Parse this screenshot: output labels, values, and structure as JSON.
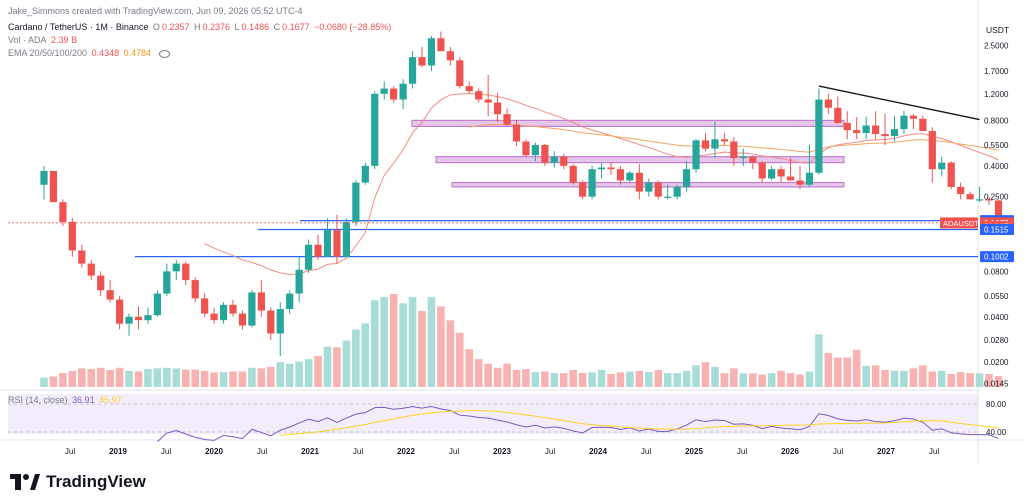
{
  "header": {
    "credit": "Jake_Simmons created with TradingView.com, Jun 09, 2026 05:52 UTC-4",
    "symbol": "Cardano / TetherUS · 1M · Binance",
    "ohlc": {
      "o_label": "O",
      "o": "0.2357",
      "h_label": "H",
      "h": "0.2376",
      "l_label": "L",
      "l": "0.1486",
      "c_label": "C",
      "c": "0.1677",
      "change": "−0.0680 (−28.85%)"
    },
    "volume": {
      "label": "Vol · ADA",
      "value": "2.39 B"
    },
    "ema": {
      "label": "EMA 20/50/100/200",
      "v1": "0.4348",
      "v2": "0.4784"
    },
    "rsi": {
      "label": "RSI (14, close)",
      "v1": "36.91",
      "v2": "45.97"
    }
  },
  "chart_data": {
    "type": "candlestick",
    "symbol": "ADAUSDT",
    "yscale": "log",
    "ylim": [
      0.0135,
      3.7
    ],
    "currency_label": "USDT",
    "y_ticks": [
      "2.5000",
      "1.7000",
      "1.2000",
      "0.8000",
      "0.5500",
      "0.4000",
      "0.2500",
      "0.0800",
      "0.0550",
      "0.0400",
      "0.0280",
      "0.0200",
      "0.0145"
    ],
    "y_tick_values": [
      2.5,
      1.7,
      1.2,
      0.8,
      0.55,
      0.4,
      0.25,
      0.08,
      0.055,
      0.04,
      0.028,
      0.02,
      0.0145
    ],
    "x_ticks": [
      "Jul",
      "2019",
      "Jul",
      "2020",
      "Jul",
      "2021",
      "Jul",
      "2022",
      "Jul",
      "2023",
      "Jul",
      "2024",
      "Jul",
      "2025",
      "Jul",
      "2026",
      "Jul",
      "2027",
      "Jul"
    ],
    "candles": [
      [
        0.3,
        0.4,
        0.24,
        0.37
      ],
      [
        0.37,
        0.36,
        0.23,
        0.23
      ],
      [
        0.23,
        0.24,
        0.16,
        0.17
      ],
      [
        0.17,
        0.18,
        0.1,
        0.11
      ],
      [
        0.11,
        0.12,
        0.085,
        0.09
      ],
      [
        0.09,
        0.095,
        0.07,
        0.075
      ],
      [
        0.075,
        0.08,
        0.055,
        0.06
      ],
      [
        0.06,
        0.07,
        0.05,
        0.052
      ],
      [
        0.052,
        0.055,
        0.033,
        0.036
      ],
      [
        0.036,
        0.042,
        0.03,
        0.04
      ],
      [
        0.04,
        0.047,
        0.033,
        0.038
      ],
      [
        0.038,
        0.046,
        0.036,
        0.041
      ],
      [
        0.041,
        0.06,
        0.04,
        0.057
      ],
      [
        0.057,
        0.09,
        0.055,
        0.08
      ],
      [
        0.08,
        0.095,
        0.07,
        0.09
      ],
      [
        0.09,
        0.093,
        0.065,
        0.07
      ],
      [
        0.07,
        0.073,
        0.05,
        0.053
      ],
      [
        0.053,
        0.057,
        0.04,
        0.042
      ],
      [
        0.042,
        0.046,
        0.036,
        0.038
      ],
      [
        0.038,
        0.05,
        0.036,
        0.048
      ],
      [
        0.048,
        0.052,
        0.04,
        0.042
      ],
      [
        0.042,
        0.044,
        0.033,
        0.035
      ],
      [
        0.035,
        0.06,
        0.034,
        0.058
      ],
      [
        0.058,
        0.07,
        0.04,
        0.044
      ],
      [
        0.044,
        0.046,
        0.028,
        0.031
      ],
      [
        0.031,
        0.05,
        0.022,
        0.045
      ],
      [
        0.045,
        0.06,
        0.042,
        0.057
      ],
      [
        0.057,
        0.1,
        0.05,
        0.082
      ],
      [
        0.082,
        0.13,
        0.078,
        0.12
      ],
      [
        0.12,
        0.14,
        0.095,
        0.1
      ],
      [
        0.1,
        0.18,
        0.1,
        0.15
      ],
      [
        0.15,
        0.19,
        0.09,
        0.1
      ],
      [
        0.1,
        0.18,
        0.1,
        0.17
      ],
      [
        0.17,
        0.32,
        0.16,
        0.31
      ],
      [
        0.31,
        0.42,
        0.3,
        0.4
      ],
      [
        0.4,
        1.25,
        0.38,
        1.2
      ],
      [
        1.2,
        1.45,
        1.1,
        1.3
      ],
      [
        1.3,
        1.35,
        1.05,
        1.1
      ],
      [
        1.1,
        1.5,
        0.95,
        1.4
      ],
      [
        1.4,
        2.3,
        1.3,
        2.1
      ],
      [
        2.1,
        2.45,
        1.8,
        1.85
      ],
      [
        1.85,
        2.9,
        1.7,
        2.8
      ],
      [
        2.8,
        3.1,
        2.3,
        2.3
      ],
      [
        2.3,
        2.45,
        1.85,
        2.0
      ],
      [
        2.0,
        2.1,
        1.3,
        1.35
      ],
      [
        1.35,
        1.45,
        1.2,
        1.25
      ],
      [
        1.25,
        1.3,
        1.05,
        1.1
      ],
      [
        1.1,
        1.6,
        0.85,
        1.05
      ],
      [
        1.05,
        1.22,
        0.78,
        0.88
      ],
      [
        0.88,
        0.96,
        0.73,
        0.75
      ],
      [
        0.75,
        0.8,
        0.54,
        0.58
      ],
      [
        0.58,
        0.6,
        0.46,
        0.47
      ],
      [
        0.47,
        0.57,
        0.43,
        0.55
      ],
      [
        0.55,
        0.56,
        0.4,
        0.42
      ],
      [
        0.42,
        0.5,
        0.39,
        0.46
      ],
      [
        0.46,
        0.48,
        0.38,
        0.4
      ],
      [
        0.4,
        0.41,
        0.3,
        0.31
      ],
      [
        0.31,
        0.32,
        0.24,
        0.25
      ],
      [
        0.25,
        0.4,
        0.24,
        0.38
      ],
      [
        0.38,
        0.42,
        0.33,
        0.39
      ],
      [
        0.39,
        0.42,
        0.35,
        0.38
      ],
      [
        0.38,
        0.4,
        0.3,
        0.32
      ],
      [
        0.32,
        0.37,
        0.31,
        0.36
      ],
      [
        0.36,
        0.41,
        0.24,
        0.27
      ],
      [
        0.27,
        0.33,
        0.25,
        0.31
      ],
      [
        0.31,
        0.32,
        0.24,
        0.25
      ],
      [
        0.25,
        0.3,
        0.24,
        0.25
      ],
      [
        0.25,
        0.3,
        0.24,
        0.29
      ],
      [
        0.29,
        0.43,
        0.27,
        0.38
      ],
      [
        0.38,
        0.6,
        0.36,
        0.59
      ],
      [
        0.59,
        0.66,
        0.5,
        0.52
      ],
      [
        0.52,
        0.78,
        0.45,
        0.6
      ],
      [
        0.6,
        0.66,
        0.55,
        0.58
      ],
      [
        0.58,
        0.62,
        0.4,
        0.45
      ],
      [
        0.45,
        0.52,
        0.4,
        0.46
      ],
      [
        0.46,
        0.47,
        0.38,
        0.42
      ],
      [
        0.42,
        0.43,
        0.31,
        0.33
      ],
      [
        0.33,
        0.4,
        0.32,
        0.38
      ],
      [
        0.38,
        0.4,
        0.31,
        0.34
      ],
      [
        0.34,
        0.45,
        0.32,
        0.32
      ],
      [
        0.32,
        0.4,
        0.28,
        0.3
      ],
      [
        0.3,
        0.55,
        0.29,
        0.36
      ],
      [
        0.36,
        1.3,
        0.35,
        1.1
      ],
      [
        1.1,
        1.2,
        0.88,
        0.97
      ],
      [
        0.97,
        1.15,
        0.76,
        0.77
      ],
      [
        0.77,
        0.92,
        0.6,
        0.69
      ],
      [
        0.69,
        0.84,
        0.6,
        0.66
      ],
      [
        0.66,
        0.85,
        0.6,
        0.74
      ],
      [
        0.74,
        0.92,
        0.6,
        0.65
      ],
      [
        0.65,
        0.89,
        0.55,
        0.63
      ],
      [
        0.63,
        0.86,
        0.58,
        0.7
      ],
      [
        0.7,
        0.93,
        0.65,
        0.86
      ],
      [
        0.86,
        0.88,
        0.7,
        0.82
      ],
      [
        0.82,
        0.86,
        0.68,
        0.68
      ],
      [
        0.68,
        0.72,
        0.31,
        0.38
      ],
      [
        0.38,
        0.46,
        0.34,
        0.42
      ],
      [
        0.42,
        0.43,
        0.28,
        0.29
      ],
      [
        0.29,
        0.31,
        0.24,
        0.26
      ],
      [
        0.26,
        0.27,
        0.24,
        0.24
      ],
      [
        0.24,
        0.29,
        0.23,
        0.24
      ],
      [
        0.24,
        0.25,
        0.22,
        0.2357
      ],
      [
        0.2357,
        0.2376,
        0.1486,
        0.1677
      ]
    ],
    "volume": [
      30,
      34,
      45,
      52,
      60,
      58,
      62,
      55,
      62,
      52,
      50,
      58,
      60,
      62,
      60,
      56,
      56,
      52,
      47,
      48,
      50,
      50,
      62,
      60,
      65,
      80,
      75,
      82,
      90,
      100,
      130,
      128,
      150,
      185,
      205,
      280,
      290,
      300,
      270,
      290,
      245,
      290,
      260,
      215,
      175,
      122,
      90,
      75,
      62,
      75,
      55,
      58,
      48,
      50,
      45,
      45,
      55,
      45,
      47,
      55,
      42,
      47,
      50,
      52,
      48,
      55,
      45,
      45,
      52,
      70,
      80,
      65,
      45,
      60,
      44,
      44,
      40,
      45,
      52,
      45,
      40,
      50,
      170,
      110,
      95,
      95,
      120,
      68,
      70,
      55,
      52,
      52,
      60,
      70,
      50,
      52,
      42,
      48,
      45,
      44,
      42,
      35
    ],
    "volume_max": 300,
    "horizontal_levels": [
      0.1734,
      0.1515,
      0.1002
    ],
    "zones": [
      [
        0.73,
        0.8
      ],
      [
        0.42,
        0.46
      ],
      [
        0.29,
        0.31
      ]
    ],
    "trendline": [
      [
        1.35,
        82
      ],
      [
        0.81,
        99
      ]
    ],
    "price_labels": [
      {
        "value": "0.1734",
        "y": 0.1734,
        "color": "#2962ff"
      },
      {
        "value": "0.1677",
        "y": 0.1677,
        "color": "#ef5350"
      },
      {
        "value": "21d 15h",
        "y": 0.158,
        "color": "#ef5350"
      },
      {
        "value": "0.1515",
        "y": 0.1515,
        "color": "#2962ff"
      },
      {
        "value": "0.1002",
        "y": 0.1002,
        "color": "#2962ff"
      }
    ],
    "symbol_label": "ADAUSDT",
    "rsi": {
      "levels": [
        "80.00",
        "40.00"
      ],
      "level_values": [
        80,
        40
      ],
      "top": 70,
      "bottom": 30
    },
    "colors": {
      "up": "#26a69a",
      "down": "#ef5350",
      "ema_fast": "#f28b82",
      "ema_slow": "#f4a460",
      "zone": "#e1bee7",
      "zone_border": "#ba68c8",
      "level": "#2962ff",
      "rsi": "#7e57c2",
      "rsi_ma": "#f9d423"
    }
  },
  "footer": {
    "brand": "TradingView"
  }
}
